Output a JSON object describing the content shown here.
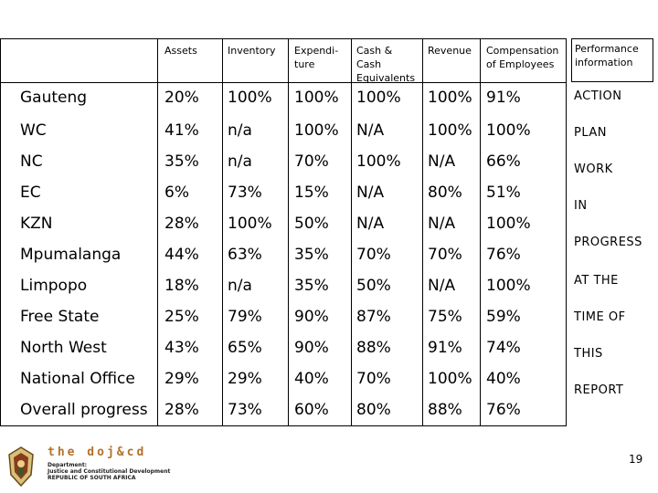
{
  "headers": {
    "assets": "Assets",
    "inventory": "Inventory",
    "expenditure": "Expendi-\nture",
    "cash": "Cash &\nCash\nEquivalents",
    "revenue": "Revenue",
    "compensation": "Compensation\nof Employees",
    "performance": "Performance\ninformation"
  },
  "rows": [
    {
      "name": "Gauteng",
      "assets": "20%",
      "inventory": "100%",
      "expenditure": "100%",
      "cash": "100%",
      "revenue": "100%",
      "compensation": "91%"
    },
    {
      "name": "WC",
      "assets": "41%",
      "inventory": "n/a",
      "expenditure": "100%",
      "cash": "N/A",
      "revenue": "100%",
      "compensation": "100%"
    },
    {
      "name": "NC",
      "assets": "35%",
      "inventory": "n/a",
      "expenditure": "70%",
      "cash": "100%",
      "revenue": "N/A",
      "compensation": "66%"
    },
    {
      "name": "EC",
      "assets": "6%",
      "inventory": "73%",
      "expenditure": "15%",
      "cash": "N/A",
      "revenue": "80%",
      "compensation": "51%"
    },
    {
      "name": "KZN",
      "assets": "28%",
      "inventory": "100%",
      "expenditure": "50%",
      "cash": "N/A",
      "revenue": "N/A",
      "compensation": "100%"
    },
    {
      "name": "Mpumalanga",
      "assets": "44%",
      "inventory": "63%",
      "expenditure": "35%",
      "cash": "70%",
      "revenue": "70%",
      "compensation": "76%"
    },
    {
      "name": "Limpopo",
      "assets": "18%",
      "inventory": "n/a",
      "expenditure": "35%",
      "cash": "50%",
      "revenue": "N/A",
      "compensation": "100%"
    },
    {
      "name": "Free State",
      "assets": "25%",
      "inventory": "79%",
      "expenditure": "90%",
      "cash": "87%",
      "revenue": "75%",
      "compensation": "59%"
    },
    {
      "name": "North West",
      "assets": "43%",
      "inventory": "65%",
      "expenditure": "90%",
      "cash": "88%",
      "revenue": "91%",
      "compensation": "74%"
    },
    {
      "name": "National Office",
      "assets": "29%",
      "inventory": "29%",
      "expenditure": "40%",
      "cash": "70%",
      "revenue": "100%",
      "compensation": "40%"
    },
    {
      "name": "Overall progress",
      "assets": "28%",
      "inventory": "73%",
      "expenditure": "60%",
      "cash": "80%",
      "revenue": "88%",
      "compensation": "76%"
    }
  ],
  "performance_words": [
    "ACTION",
    "PLAN",
    "WORK",
    "IN",
    "PROGRESS",
    "AT THE",
    "TIME  OF",
    "THIS",
    "REPORT"
  ],
  "footer": {
    "logo_text": "the doj&cd",
    "logo_sub_1": "Department:",
    "logo_sub_2": "Justice and Constitutional Development",
    "logo_sub_3": "REPUBLIC OF SOUTH AFRICA",
    "page_number": "19"
  },
  "colors": {
    "logo_orange": "#b5702a"
  }
}
